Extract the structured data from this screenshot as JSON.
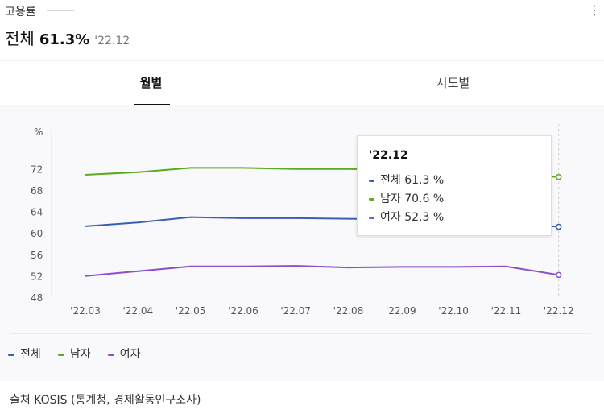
{
  "header": {
    "title": "고용률",
    "headline_series": "전체",
    "headline_value": "61.3%",
    "headline_period": "'22.12"
  },
  "tabs": [
    {
      "label": "월별",
      "active": true
    },
    {
      "label": "시도별",
      "active": false
    }
  ],
  "chart_data": {
    "type": "line",
    "ylabel": "%",
    "ylim": [
      48,
      76
    ],
    "yticks": [
      48,
      52,
      56,
      60,
      64,
      68,
      72
    ],
    "categories": [
      "'22.03",
      "'22.04",
      "'22.05",
      "'22.06",
      "'22.07",
      "'22.08",
      "'22.09",
      "'22.10",
      "'22.11",
      "'22.12"
    ],
    "series": [
      {
        "name": "전체",
        "color": "#3b5fb8",
        "values": [
          61.4,
          62.1,
          63.1,
          62.9,
          62.9,
          62.8,
          62.7,
          62.6,
          62.2,
          61.3
        ]
      },
      {
        "name": "남자",
        "color": "#5aab22",
        "values": [
          71.0,
          71.5,
          72.3,
          72.3,
          72.1,
          72.1,
          71.9,
          71.6,
          71.2,
          70.6
        ]
      },
      {
        "name": "여자",
        "color": "#8b4fc8",
        "values": [
          52.1,
          53.0,
          53.9,
          53.9,
          54.0,
          53.7,
          53.8,
          53.8,
          53.9,
          52.3
        ]
      }
    ],
    "grid": false,
    "legend_position": "bottom-left"
  },
  "tooltip": {
    "title": "'22.12",
    "rows": [
      {
        "name": "전체",
        "value": "61.3 %",
        "color": "#3b5fb8"
      },
      {
        "name": "남자",
        "value": "70.6 %",
        "color": "#5aab22"
      },
      {
        "name": "여자",
        "value": "52.3 %",
        "color": "#8b4fc8"
      }
    ]
  },
  "source": "출처 KOSIS (통계청, 경제활동인구조사)",
  "icons": {
    "more": "vertical-dots-icon"
  }
}
